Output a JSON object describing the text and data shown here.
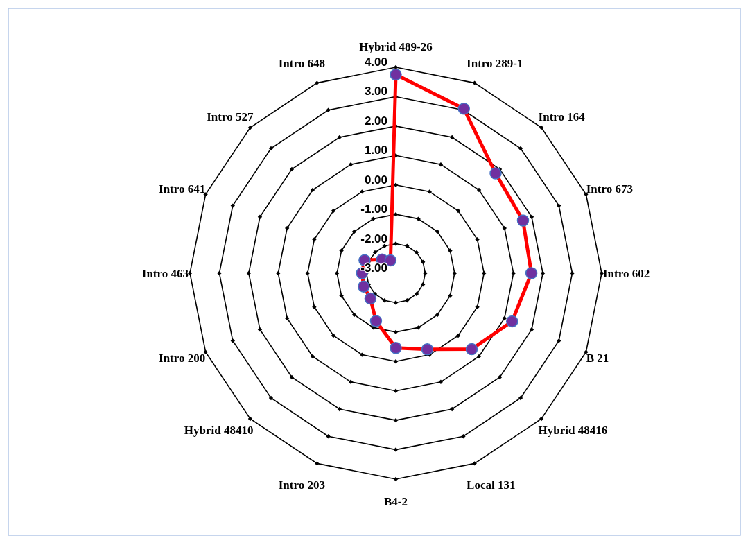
{
  "chart_data": {
    "type": "radar",
    "categories": [
      "Hybrid 489-26",
      "Intro 289-1",
      "Intro 164",
      "Intro 673",
      "Intro 602",
      "B 21",
      "Hybrid 48416",
      "Local 131",
      "B4-2",
      "Intro 203",
      "Hybrid 48410",
      "Intro 200",
      "Intro 463",
      "Intro 641",
      "Intro 527",
      "Intro 648"
    ],
    "series": [
      {
        "color": "#ff0000",
        "values": [
          3.75,
          3.05,
          1.8,
          1.68,
          1.61,
          1.28,
          0.65,
          -0.2,
          -0.46,
          -1.24,
          -1.78,
          -1.82,
          -1.85,
          -1.85,
          -2.34,
          -2.53
        ]
      }
    ],
    "ylim": [
      -3,
      4
    ],
    "yticks": [
      {
        "value": -3,
        "label": "-3.00"
      },
      {
        "value": -2,
        "label": "-2.00"
      },
      {
        "value": -1,
        "label": "-1.00"
      },
      {
        "value": 0,
        "label": "0.00"
      },
      {
        "value": 1,
        "label": "1.00"
      },
      {
        "value": 2,
        "label": "2.00"
      },
      {
        "value": 3,
        "label": "3.00"
      },
      {
        "value": 4,
        "label": "4.00"
      }
    ],
    "grid": true,
    "marker": "circle"
  }
}
